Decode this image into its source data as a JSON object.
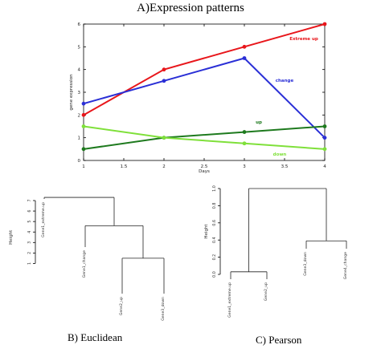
{
  "chart_data": [
    {
      "type": "line",
      "title": "A)Expression patterns",
      "xlabel": "Days",
      "ylabel": "gene expression",
      "xlim": [
        1,
        4
      ],
      "ylim": [
        0,
        6
      ],
      "x_ticks": [
        "1",
        "1.5",
        "2",
        "2.5",
        "3",
        "3.5",
        "4"
      ],
      "y_ticks": [
        "0",
        "1",
        "2",
        "3",
        "4",
        "5",
        "6"
      ],
      "series": [
        {
          "name": "Extreme up",
          "color": "#e8161b",
          "x": [
            1,
            2,
            3,
            4
          ],
          "y": [
            2.0,
            4.0,
            5.0,
            6.0
          ]
        },
        {
          "name": "change",
          "color": "#2a2fd6",
          "x": [
            1,
            2,
            3,
            4
          ],
          "y": [
            2.5,
            3.5,
            4.5,
            1.0
          ]
        },
        {
          "name": "up",
          "color": "#1e7a1e",
          "x": [
            1,
            2,
            3,
            4
          ],
          "y": [
            0.5,
            1.0,
            1.25,
            1.5
          ]
        },
        {
          "name": "down",
          "color": "#7fe03a",
          "x": [
            1,
            2,
            3,
            4
          ],
          "y": [
            1.5,
            1.0,
            0.75,
            0.5
          ]
        }
      ]
    },
    {
      "type": "dendrogram",
      "title": "B) Euclidean",
      "ylabel": "Height",
      "ylim": [
        0,
        7
      ],
      "y_ticks": [
        "1",
        "2",
        "3",
        "4",
        "5",
        "6",
        "7"
      ],
      "leaves": [
        "Gene1_extreme.up",
        "Gene1_change",
        "Gene2_up",
        "Gene3_down"
      ],
      "merges": [
        {
          "left": "Gene2_up",
          "right": "Gene3_down",
          "height": 1.5
        },
        {
          "left": "Gene1_change",
          "right": "cluster(Gene2_up,Gene3_down)",
          "height": 4.6
        },
        {
          "left": "Gene1_extreme.up",
          "right": "cluster(Gene1_change,Gene2_up,Gene3_down)",
          "height": 7.3
        }
      ]
    },
    {
      "type": "dendrogram",
      "title": "C) Pearson",
      "ylabel": "Height",
      "ylim": [
        0.0,
        1.0
      ],
      "y_ticks": [
        "0.0",
        "0.2",
        "0.4",
        "0.6",
        "0.8",
        "1.0"
      ],
      "leaves": [
        "Gene1_extreme.up",
        "Gene2_up",
        "Gene3_down",
        "Gene4_change"
      ],
      "merges": [
        {
          "left": "Gene1_extreme.up",
          "right": "Gene2_up",
          "height": 0.03
        },
        {
          "left": "Gene3_down",
          "right": "Gene4_change",
          "height": 0.39
        },
        {
          "left": "cluster(Gene1_extreme.up,Gene2_up)",
          "right": "cluster(Gene3_down,Gene4_change)",
          "height": 1.0
        }
      ]
    }
  ]
}
